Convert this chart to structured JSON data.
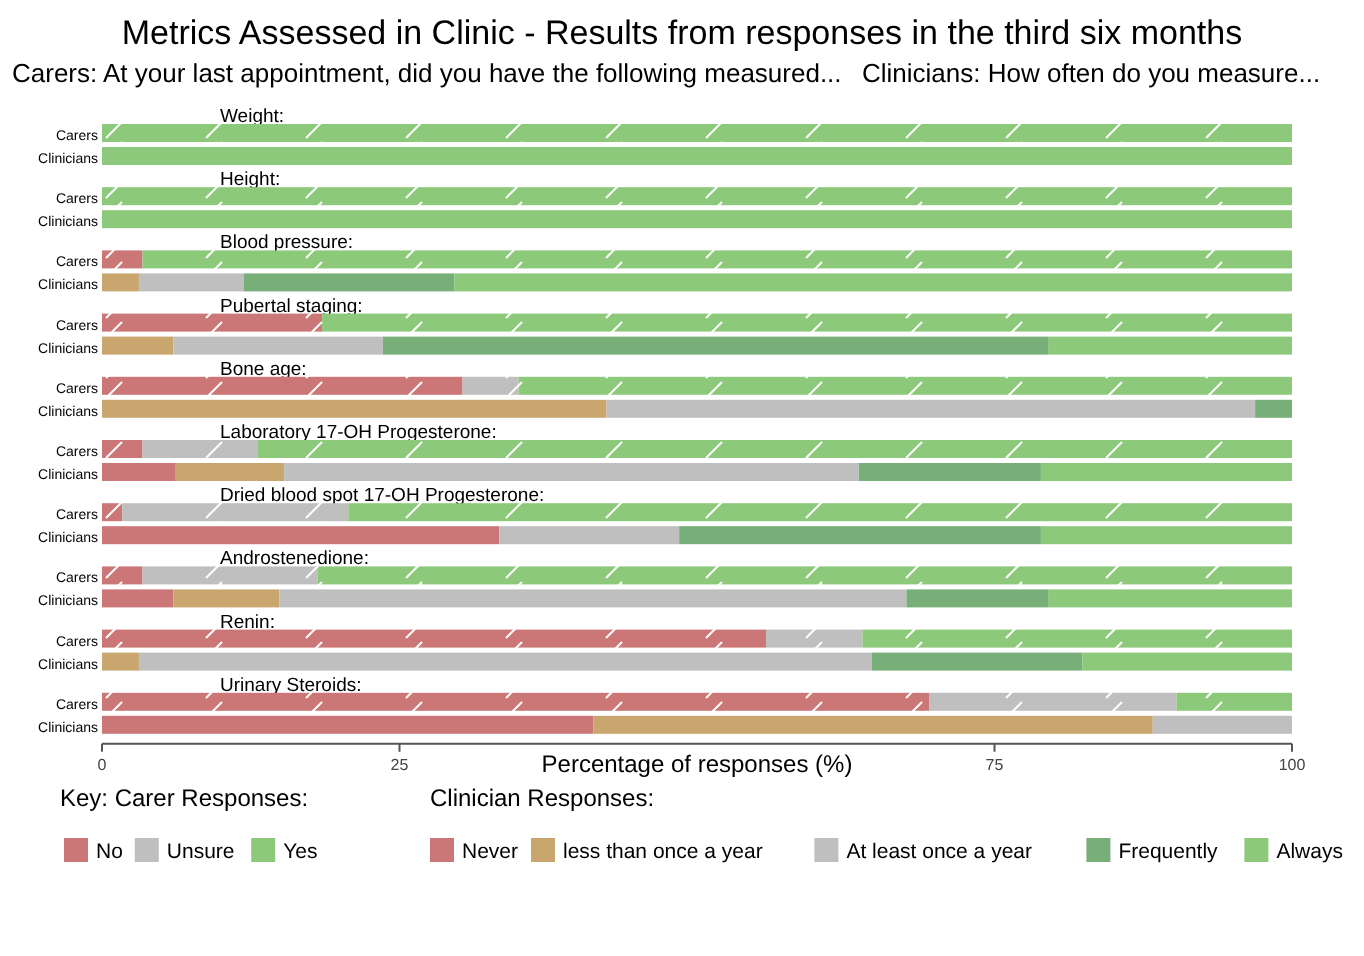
{
  "chart_data": {
    "type": "bar",
    "orientation": "horizontal",
    "stacked": true,
    "title": "Metrics Assessed in Clinic - Results from responses in the third six months",
    "subtitle": "Carers: At your last appointment, did you have the following measured...",
    "xlabel": "Percentage of responses (%)",
    "legend_title": "Key: Carer Responses:",
    "legend": "bottom",
    "categories": [
      "Carers",
      "Clinicians",
      "Carers",
      "Clinicians",
      "Carers",
      "Clinicians",
      "Carers",
      "Clinicians",
      "Carers",
      "Clinicians",
      "Carers",
      "Clinicians",
      "Carers",
      "Clinicians",
      "Carers",
      "Clinicians",
      "Carers",
      "Clinicians",
      "Carers",
      "Clinicians"
    ],
    "annotations": [
      "Weight:",
      "Height:",
      "Blood pressure:",
      "Pubertal staging:",
      "Bone age:",
      "Laboratory 17-OH Progesterone:",
      "Dried blood spot 17-OH Progesterone:",
      "Androstenedione:",
      "Renin:",
      "Urinary Steroids:",
      "Clinicians: How often do you measure...",
      "Clinician Responses:"
    ],
    "xlim": [
      0,
      100
    ],
    "xticks": [
      0,
      25,
      75,
      100
    ],
    "series": [
      {
        "name": "No",
        "color": "#cc7777",
        "values": [
          0,
          null,
          0,
          null,
          3.4,
          null,
          18.5,
          null,
          30.3,
          null,
          3.4,
          null,
          1.7,
          null,
          3.4,
          null,
          55.8,
          null,
          69.5,
          null
        ]
      },
      {
        "name": "Unsure",
        "color": "#bfbfbf",
        "values": [
          0,
          null,
          0,
          null,
          0,
          null,
          0,
          null,
          4.7,
          null,
          9.7,
          null,
          19.0,
          null,
          14.7,
          null,
          8.1,
          null,
          20.8,
          null
        ]
      },
      {
        "name": "Yes",
        "color": "#8cc97a",
        "values": [
          100,
          null,
          100,
          null,
          96.6,
          null,
          81.5,
          null,
          65.0,
          null,
          86.9,
          null,
          79.3,
          null,
          81.9,
          null,
          36.1,
          null,
          9.7,
          null
        ]
      },
      {
        "name": "Never",
        "color": "#cc7777",
        "values": [
          null,
          0,
          null,
          0,
          null,
          0,
          null,
          0,
          null,
          0,
          null,
          6.2,
          null,
          33.4,
          null,
          6.0,
          null,
          0,
          null,
          41.3
        ]
      },
      {
        "name": "less than once a year",
        "color": "#c9a66e",
        "values": [
          null,
          0,
          null,
          0,
          null,
          3.1,
          null,
          6.0,
          null,
          42.4,
          null,
          9.1,
          null,
          0,
          null,
          8.9,
          null,
          3.1,
          null,
          47.0
        ]
      },
      {
        "name": "At least once a year",
        "color": "#bfbfbf",
        "values": [
          null,
          0,
          null,
          0,
          null,
          8.8,
          null,
          17.6,
          null,
          54.5,
          null,
          48.3,
          null,
          15.1,
          null,
          52.7,
          null,
          61.6,
          null,
          11.7
        ]
      },
      {
        "name": "Frequently",
        "color": "#78ae78",
        "values": [
          null,
          0,
          null,
          0,
          null,
          17.7,
          null,
          55.9,
          null,
          3.1,
          null,
          15.3,
          null,
          30.4,
          null,
          11.9,
          null,
          17.7,
          null,
          0
        ]
      },
      {
        "name": "Always",
        "color": "#8cc97a",
        "values": [
          null,
          100,
          null,
          100,
          null,
          70.4,
          null,
          20.5,
          null,
          0,
          null,
          21.1,
          null,
          21.1,
          null,
          20.5,
          null,
          17.6,
          null,
          0
        ]
      }
    ]
  }
}
